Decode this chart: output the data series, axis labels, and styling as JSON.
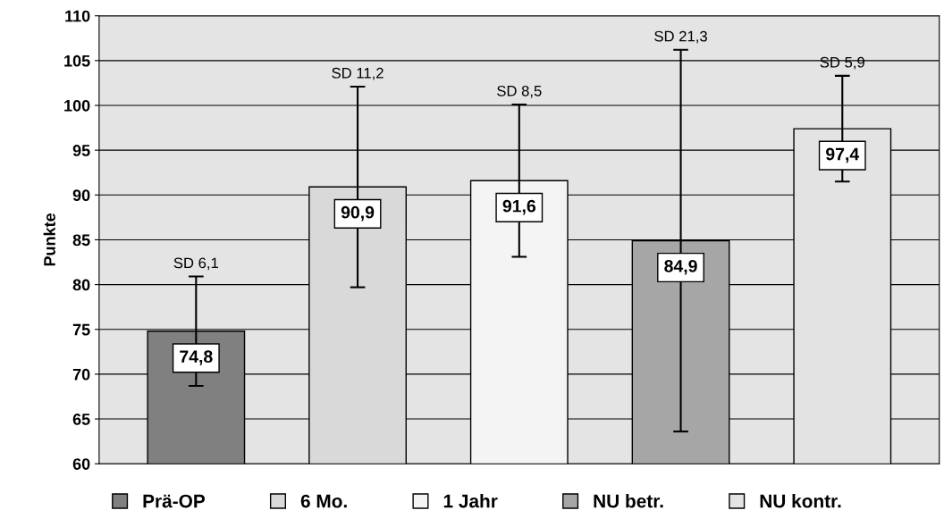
{
  "chart_data": {
    "type": "bar",
    "ylabel": "Punkte",
    "categories": [
      null,
      null,
      null,
      null,
      null
    ],
    "series": [
      {
        "name": "Prä-OP",
        "color": "#808080",
        "values": [
          74.8,
          null,
          null,
          null,
          null
        ],
        "errors": [
          6.1,
          null,
          null,
          null,
          null
        ],
        "value_labels": [
          "74,8",
          null,
          null,
          null,
          null
        ]
      },
      {
        "name": "6 Mo.",
        "color": "#d9d9d9",
        "values": [
          null,
          90.9,
          null,
          null,
          null
        ],
        "errors": [
          null,
          11.2,
          null,
          null,
          null
        ],
        "value_labels": [
          null,
          "90,9",
          null,
          null,
          null
        ]
      },
      {
        "name": "1 Jahr",
        "color": "#f4f4f4",
        "values": [
          null,
          null,
          91.6,
          null,
          null
        ],
        "errors": [
          null,
          null,
          8.5,
          null,
          null
        ],
        "value_labels": [
          null,
          null,
          "91,6",
          null,
          null
        ]
      },
      {
        "name": "NU betr.",
        "color": "#a6a6a6",
        "values": [
          null,
          null,
          null,
          84.9,
          null
        ],
        "errors": [
          null,
          null,
          null,
          21.3,
          null
        ],
        "value_labels": [
          null,
          null,
          null,
          "84,9",
          null
        ]
      },
      {
        "name": "NU kontr.",
        "color": "#e3e3e3",
        "values": [
          null,
          null,
          null,
          null,
          97.4
        ],
        "errors": [
          null,
          null,
          null,
          null,
          5.9
        ],
        "value_labels": [
          null,
          null,
          null,
          null,
          "97,4"
        ]
      }
    ],
    "annotations": [
      {
        "text": "SD 6,1",
        "y": 80.9
      },
      {
        "text": "SD 11,2",
        "y": 102.1
      },
      {
        "text": "SD 8,5",
        "y": 100.1
      },
      {
        "text": "SD 21,3",
        "y": 106.2
      },
      {
        "text": "SD 5,9",
        "y": 103.3
      }
    ],
    "ylim": [
      60,
      110
    ],
    "yticks": [
      60,
      65,
      70,
      75,
      80,
      85,
      90,
      95,
      100,
      105,
      110
    ],
    "grid": "y",
    "legend": "bottom"
  }
}
